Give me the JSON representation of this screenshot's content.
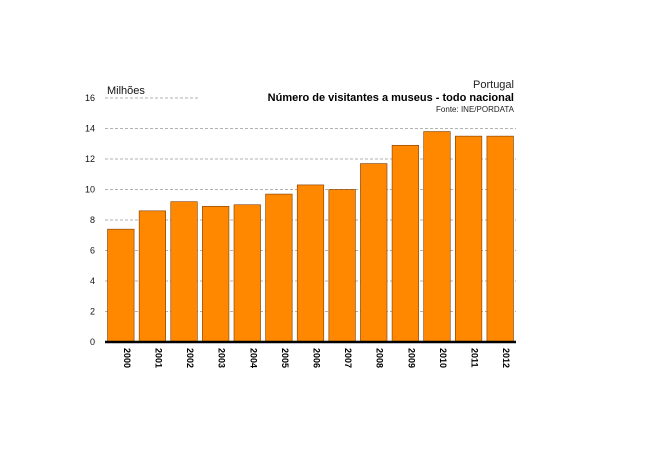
{
  "header": {
    "country": "Portugal",
    "title": "Número de visitantes a museus - todo nacional",
    "source": "Fonte: INE/PORDATA"
  },
  "colors": {
    "bar_fill": "#FF8800",
    "bar_stroke": "#7a3b00",
    "grid": "#999999",
    "baseline": "#000000"
  },
  "chart_data": {
    "type": "bar",
    "title": "Número de visitantes a museus - todo nacional",
    "subtitle": "Portugal",
    "source": "Fonte: INE/PORDATA",
    "ylabel": "Milhões",
    "xlabel": "",
    "ylim": [
      0,
      16
    ],
    "yticks": [
      0,
      2,
      4,
      6,
      8,
      10,
      12,
      14,
      16
    ],
    "grid": true,
    "legend": "none",
    "categories": [
      "2000",
      "2001",
      "2002",
      "2003",
      "2004",
      "2005",
      "2006",
      "2007",
      "2008",
      "2009",
      "2010",
      "2011",
      "2012"
    ],
    "values": [
      7.4,
      8.6,
      9.2,
      8.9,
      9.0,
      9.7,
      10.3,
      10.0,
      11.7,
      12.9,
      13.8,
      13.5,
      13.5
    ]
  }
}
